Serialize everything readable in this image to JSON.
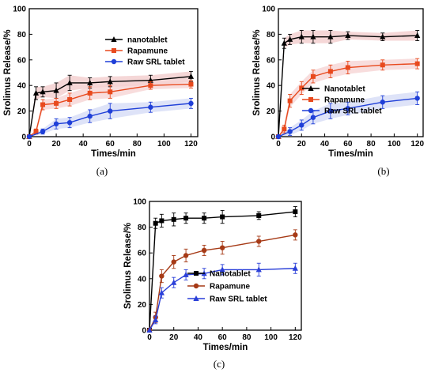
{
  "chart_data": [
    {
      "type": "line",
      "panel_label": "(a)",
      "xlabel": "Times/min",
      "ylabel": "Srolimus Release/%",
      "xlim": [
        0,
        125
      ],
      "ylim": [
        0,
        100
      ],
      "xticks": [
        0,
        20,
        40,
        60,
        80,
        100,
        120
      ],
      "yticks": [
        0,
        20,
        40,
        60,
        80,
        100
      ],
      "grid": false,
      "legend_position": "center-right",
      "series": [
        {
          "name": "nanotablet",
          "color": "#000000",
          "marker": "triangle",
          "band": "#f2c9c9",
          "x": [
            0,
            5,
            10,
            20,
            30,
            45,
            60,
            90,
            120
          ],
          "y": [
            0,
            34,
            35,
            36,
            42,
            42,
            43,
            44,
            47
          ],
          "err": [
            0,
            5,
            4,
            6,
            6,
            4,
            4,
            4,
            4
          ]
        },
        {
          "name": "Rapamune",
          "color": "#e8491d",
          "marker": "square",
          "band": "#f6d1d1",
          "x": [
            0,
            5,
            10,
            20,
            30,
            45,
            60,
            90,
            120
          ],
          "y": [
            0,
            4,
            25,
            26,
            29,
            34,
            35,
            40,
            41
          ],
          "err": [
            0,
            2,
            4,
            4,
            5,
            5,
            5,
            3,
            3
          ]
        },
        {
          "name": "Raw SRL tablet",
          "color": "#1f3fd8",
          "marker": "circle",
          "band": "#d3d9f5",
          "x": [
            0,
            10,
            20,
            30,
            45,
            60,
            90,
            120
          ],
          "y": [
            0,
            4,
            10,
            11,
            16,
            20,
            23,
            26
          ],
          "err": [
            0,
            2,
            4,
            4,
            5,
            6,
            4,
            4
          ]
        }
      ]
    },
    {
      "type": "line",
      "panel_label": "(b)",
      "xlabel": "Times/min",
      "ylabel": "Srolimus Release/%",
      "xlim": [
        0,
        125
      ],
      "ylim": [
        0,
        100
      ],
      "xticks": [
        0,
        20,
        40,
        60,
        80,
        100,
        120
      ],
      "yticks": [
        0,
        20,
        40,
        60,
        80,
        100
      ],
      "grid": false,
      "legend_position": "lower-right",
      "series": [
        {
          "name": "Nanotablet",
          "color": "#000000",
          "marker": "triangle",
          "band": "#f2c9c9",
          "x": [
            0,
            5,
            10,
            20,
            30,
            45,
            60,
            90,
            120
          ],
          "y": [
            0,
            73,
            76,
            78,
            78,
            78,
            79,
            78,
            79
          ],
          "err": [
            0,
            4,
            4,
            5,
            5,
            5,
            3,
            3,
            4
          ]
        },
        {
          "name": "Rapamune",
          "color": "#e8491d",
          "marker": "square",
          "band": "#f6d1d1",
          "x": [
            0,
            5,
            10,
            20,
            30,
            45,
            60,
            90,
            120
          ],
          "y": [
            0,
            6,
            28,
            38,
            47,
            51,
            54,
            56,
            57
          ],
          "err": [
            0,
            3,
            5,
            5,
            5,
            5,
            5,
            4,
            4
          ]
        },
        {
          "name": "Raw SRL tablet",
          "color": "#1f3fd8",
          "marker": "circle",
          "band": "#d3d9f5",
          "x": [
            0,
            10,
            20,
            30,
            45,
            60,
            90,
            120
          ],
          "y": [
            0,
            4,
            9,
            15,
            20,
            22,
            27,
            30
          ],
          "err": [
            0,
            3,
            4,
            5,
            6,
            5,
            5,
            5
          ]
        }
      ]
    },
    {
      "type": "line",
      "panel_label": "(c)",
      "xlabel": "Times/min",
      "ylabel": "Srolimus Release/%",
      "xlim": [
        0,
        125
      ],
      "ylim": [
        0,
        100
      ],
      "xticks": [
        0,
        20,
        40,
        60,
        80,
        100,
        120
      ],
      "yticks": [
        0,
        20,
        40,
        60,
        80,
        100
      ],
      "grid": false,
      "legend_position": "lower-right",
      "series": [
        {
          "name": "Nanotablet",
          "color": "#000000",
          "marker": "square",
          "band": null,
          "x": [
            0,
            5,
            10,
            20,
            30,
            45,
            60,
            90,
            120
          ],
          "y": [
            0,
            83,
            85,
            86,
            87,
            87,
            88,
            89,
            92
          ],
          "err": [
            0,
            4,
            5,
            5,
            4,
            4,
            5,
            3,
            4
          ]
        },
        {
          "name": "Rapamune",
          "color": "#a63a16",
          "marker": "circle",
          "band": null,
          "x": [
            0,
            5,
            10,
            20,
            30,
            45,
            60,
            90,
            120
          ],
          "y": [
            0,
            10,
            42,
            53,
            58,
            62,
            64,
            69,
            74
          ],
          "err": [
            0,
            4,
            5,
            5,
            5,
            4,
            5,
            4,
            4
          ]
        },
        {
          "name": "Raw SRL tablet",
          "color": "#2a3fd8",
          "marker": "triangle",
          "band": null,
          "x": [
            0,
            5,
            10,
            20,
            30,
            45,
            60,
            90,
            120
          ],
          "y": [
            0,
            8,
            29,
            37,
            43,
            44,
            47,
            47,
            48
          ],
          "err": [
            0,
            3,
            4,
            4,
            4,
            4,
            4,
            5,
            4
          ]
        }
      ]
    }
  ]
}
